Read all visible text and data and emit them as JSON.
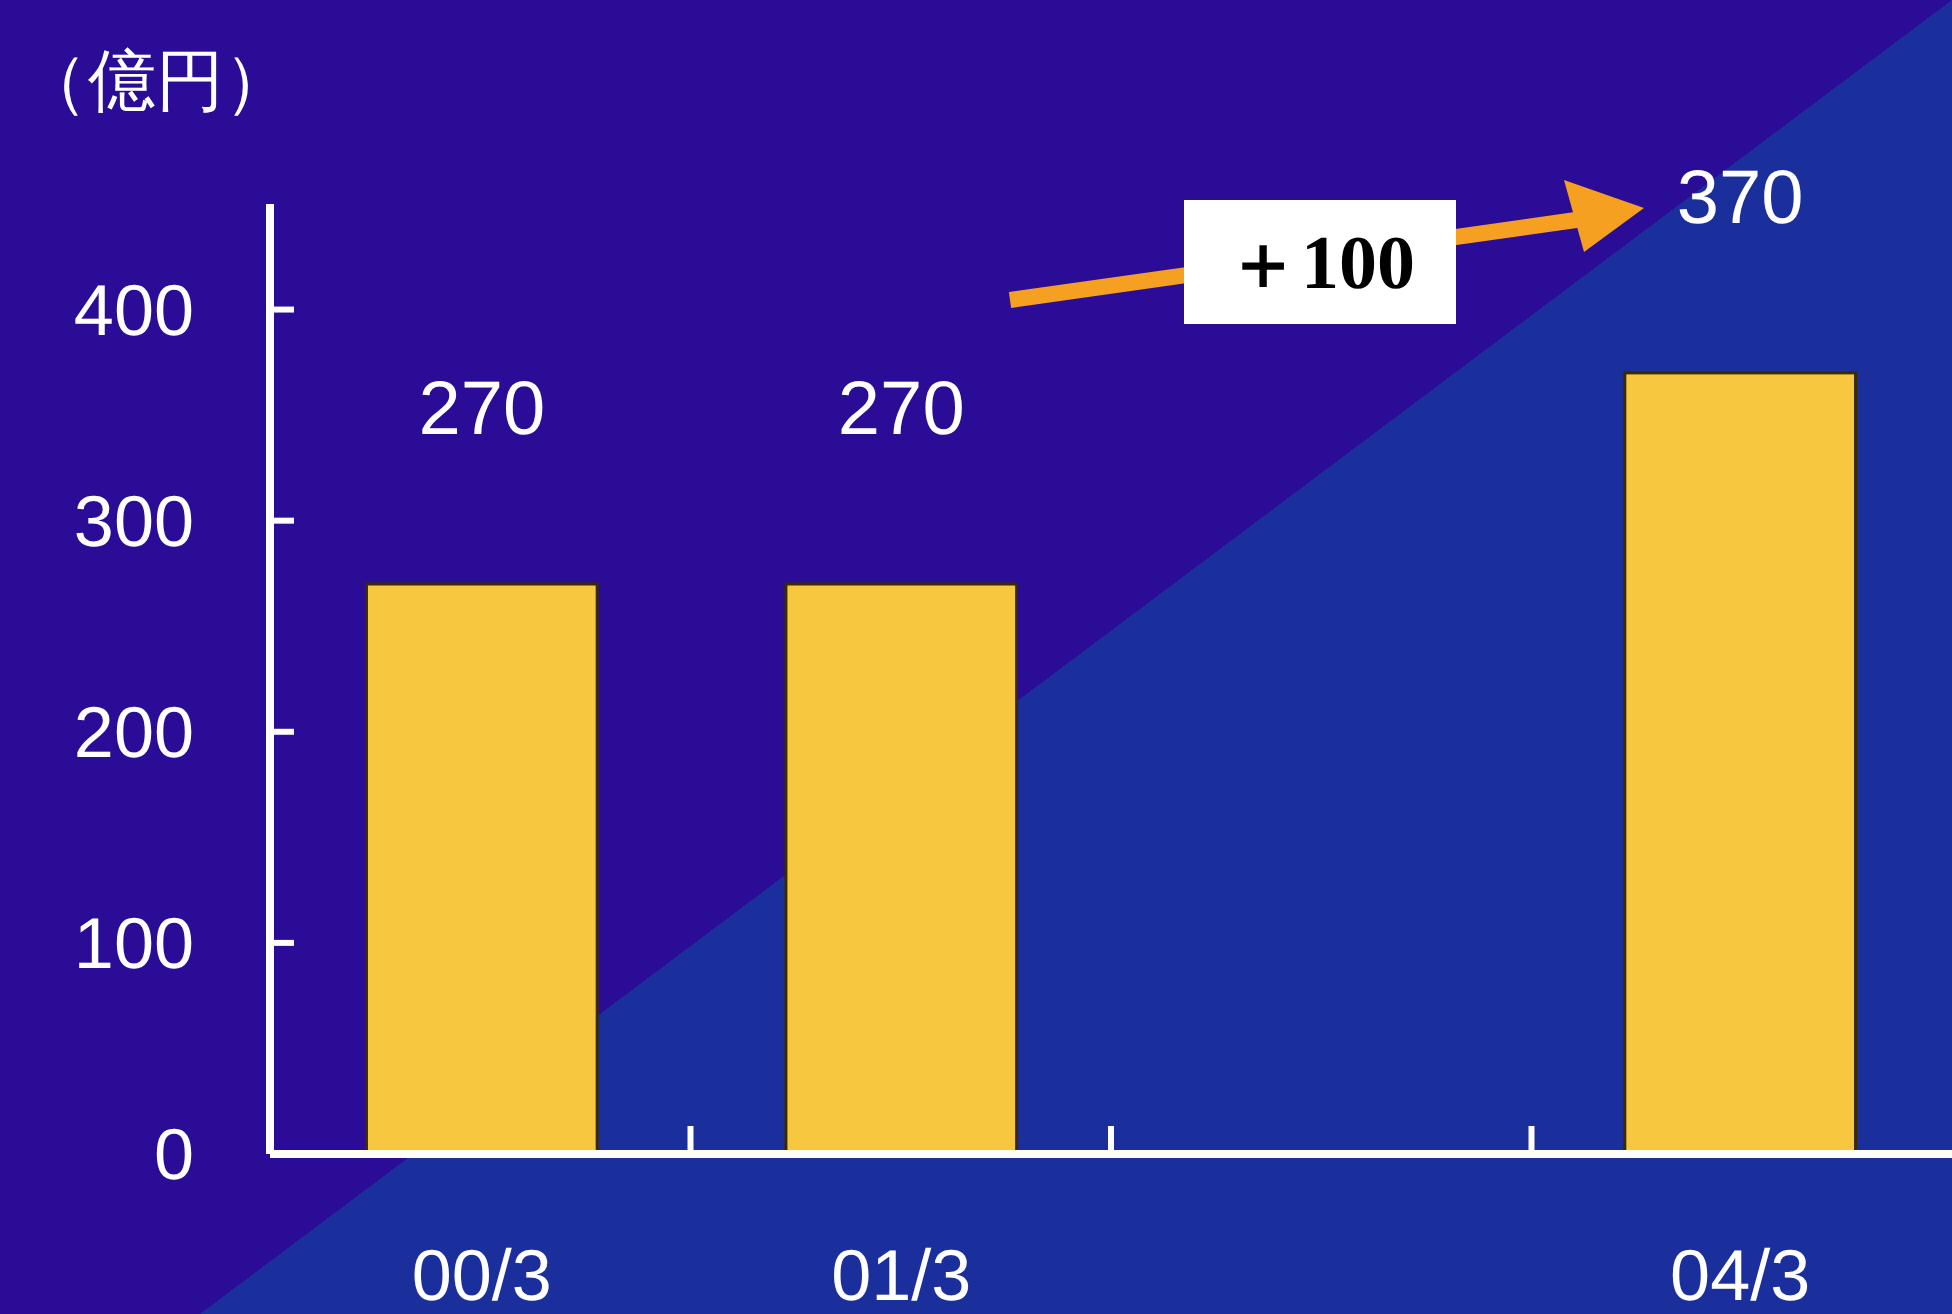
{
  "chart_data": {
    "type": "bar",
    "ylabel": "（億円）",
    "categories": [
      "00/3",
      "01/3",
      null,
      "04/3"
    ],
    "values": [
      270,
      270,
      null,
      370
    ],
    "color": "#f7c740",
    "ylim": [
      0,
      450
    ],
    "yticks": [
      0,
      100,
      200,
      300,
      400
    ],
    "data_labels": true,
    "annotations": [
      "＋100"
    ]
  }
}
